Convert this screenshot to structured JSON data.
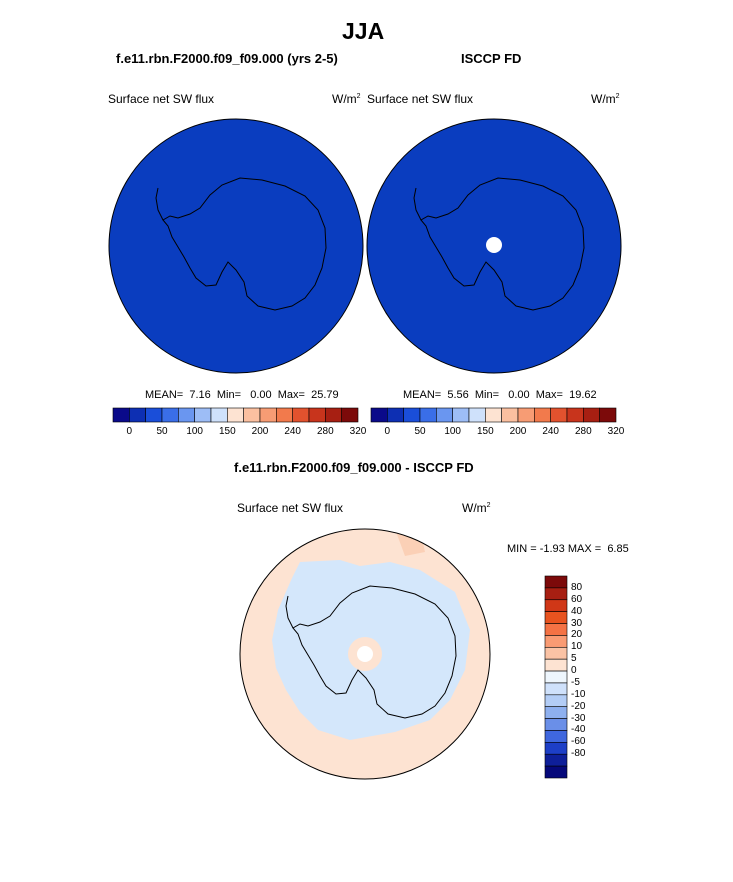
{
  "figure": {
    "title": "JJA",
    "panel_left_title": "f.e11.rbn.F2000.f09_f09.000 (yrs 2-5)",
    "panel_right_title": "ISCCP FD",
    "diff_title": "f.e11.rbn.F2000.f09_f09.000 - ISCCP FD",
    "variable": "Surface net SW flux",
    "units_base": "W/m",
    "units_exp": "2"
  },
  "colors": {
    "ocean_fill": "#0a3dbf",
    "diff_pos": "#fde3d2",
    "diff_pos2": "#fbd0b6",
    "diff_neg": "#d4e7fb",
    "coast": "#000000",
    "seq_colorbar": [
      "#0a0a8a",
      "#0d2fb3",
      "#1a4ed9",
      "#3a6ee8",
      "#6a96f0",
      "#9dbdf6",
      "#cfe1fb",
      "#fde3d2",
      "#fbc0a0",
      "#f79c74",
      "#f27a4c",
      "#e2522e",
      "#c8341c",
      "#a71f12",
      "#7c0a0a"
    ],
    "diff_colorbar": [
      "#7c0a0a",
      "#a71f12",
      "#d03717",
      "#e8531f",
      "#f47244",
      "#f99b73",
      "#fbc3a5",
      "#fde3d2",
      "#eef6fd",
      "#cfe1fb",
      "#b3cdf6",
      "#8eb0ef",
      "#6a8fe8",
      "#3f67de",
      "#1d3fc7",
      "#0e1f9a",
      "#05087a"
    ]
  },
  "chart_data": [
    {
      "type": "heatmap",
      "title": "f.e11.rbn.F2000.f09_f09.000 (yrs 2-5)",
      "variable": "Surface net SW flux",
      "units": "W/m2",
      "mean": "7.16",
      "min": "0.00",
      "max": "25.79",
      "mean_label": "MEAN=",
      "min_label": "Min=",
      "max_label": "Max=",
      "colorbar_ticks": [
        "0",
        "50",
        "100",
        "150",
        "200",
        "240",
        "280",
        "320"
      ]
    },
    {
      "type": "heatmap",
      "title": "ISCCP FD",
      "variable": "Surface net SW flux",
      "units": "W/m2",
      "mean": "5.56",
      "min": "0.00",
      "max": "19.62",
      "mean_label": "MEAN=",
      "min_label": "Min=",
      "max_label": "Max=",
      "colorbar_ticks": [
        "0",
        "50",
        "100",
        "150",
        "200",
        "240",
        "280",
        "320"
      ]
    },
    {
      "type": "heatmap",
      "title": "f.e11.rbn.F2000.f09_f09.000 - ISCCP FD",
      "variable": "Surface net SW flux",
      "units": "W/m2",
      "min": "-1.93",
      "max": "6.85",
      "min_label": "MIN =",
      "max_label": "MAX =",
      "colorbar_levels": [
        "80",
        "60",
        "40",
        "30",
        "20",
        "10",
        "5",
        "0",
        "-5",
        "-10",
        "-20",
        "-30",
        "-40",
        "-60",
        "-80"
      ]
    }
  ]
}
